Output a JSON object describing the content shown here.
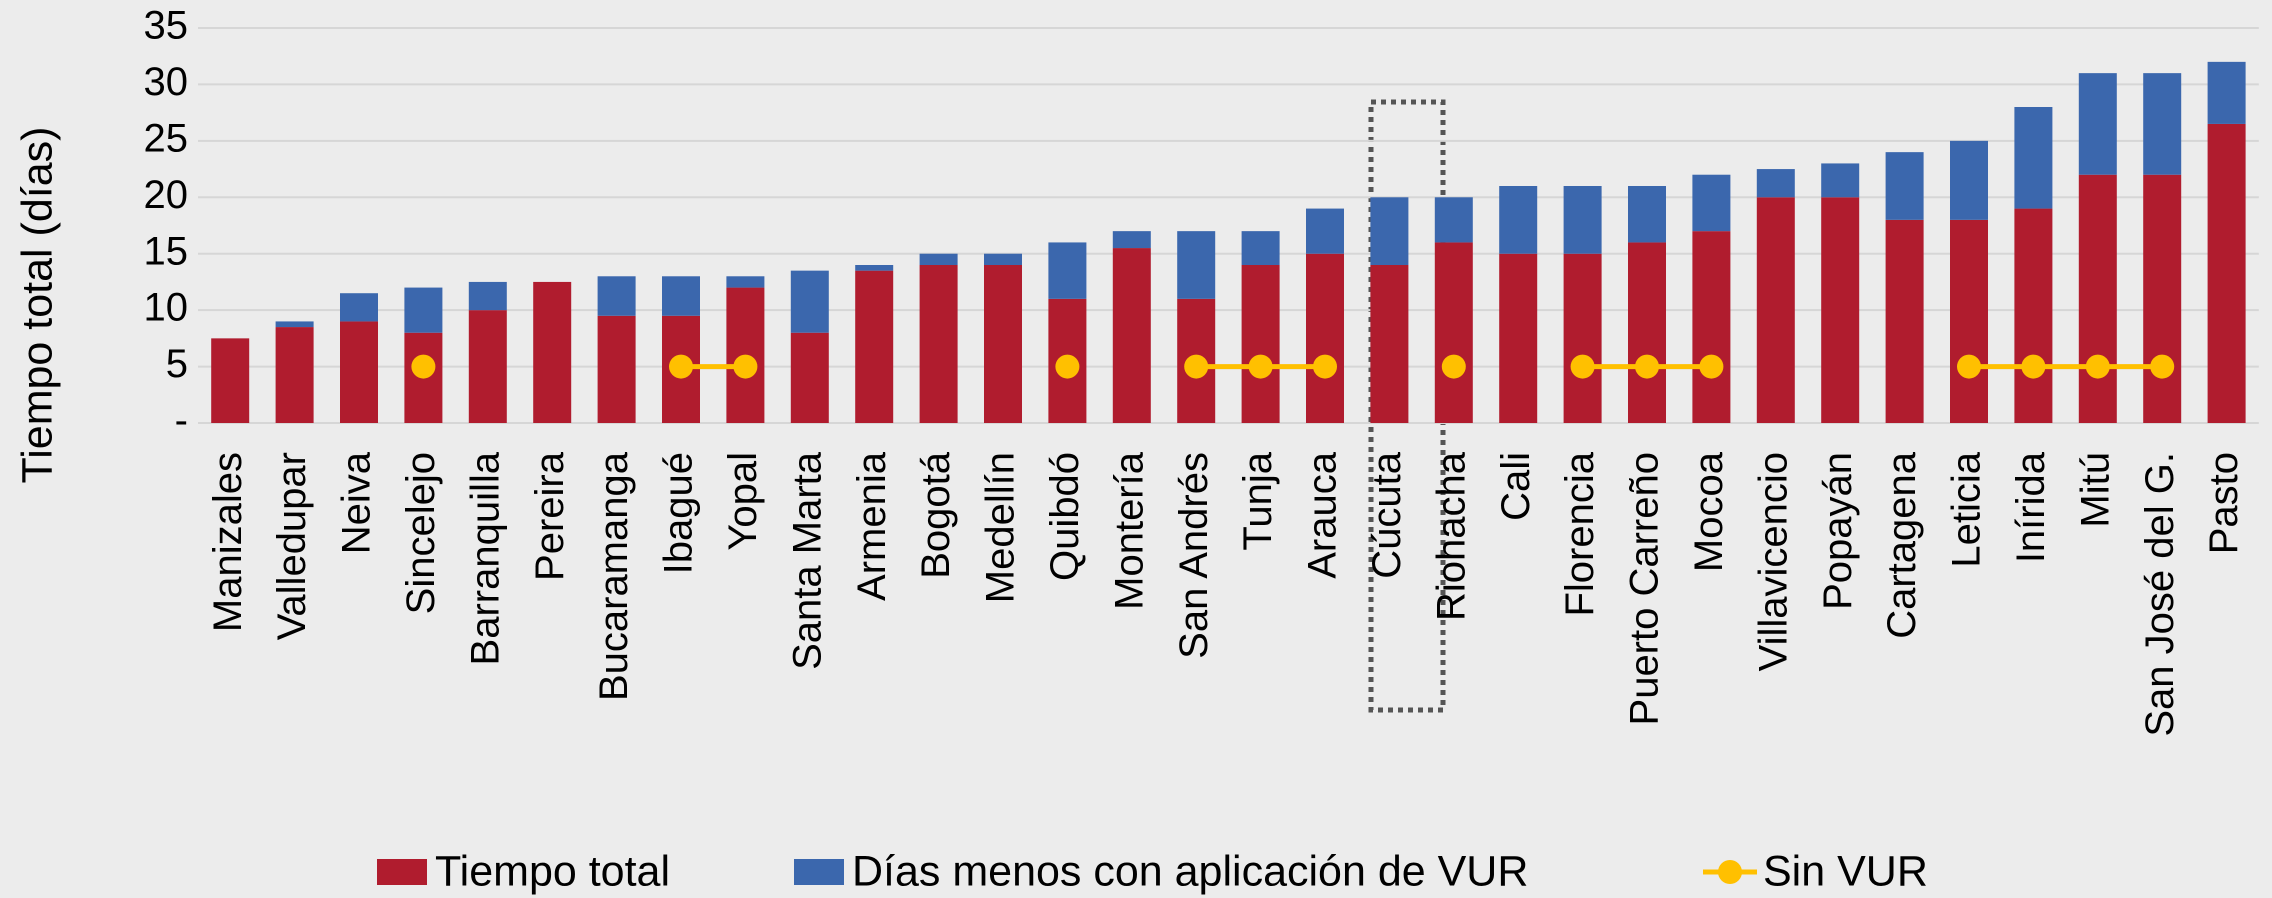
{
  "chart_data": {
    "type": "bar",
    "stacked": true,
    "y_label": "Tiempo total (días)",
    "categories": [
      "Manizales",
      "Valledupar",
      "Neiva",
      "Sincelejo",
      "Barranquilla",
      "Pereira",
      "Bucaramanga",
      "Ibagué",
      "Yopal",
      "Santa Marta",
      "Armenia",
      "Bogotá",
      "Medellín",
      "Quibdó",
      "Montería",
      "San Andrés",
      "Tunja",
      "Arauca",
      "Cúcuta",
      "Riohacha",
      "Cali",
      "Florencia",
      "Puerto Carreño",
      "Mocoa",
      "Villavicencio",
      "Popayán",
      "Cartagena",
      "Leticia",
      "Inírida",
      "Mitú",
      "San José del G.",
      "Pasto"
    ],
    "series": [
      {
        "name": "Tiempo total",
        "color": "#b01c2e",
        "values": [
          7.5,
          8.5,
          9,
          8,
          10,
          12.5,
          9.5,
          9.5,
          12,
          8,
          13.5,
          14,
          14,
          11,
          15.5,
          11,
          14,
          15,
          14,
          16,
          15,
          15,
          16,
          17,
          20,
          20,
          18,
          18,
          19,
          22,
          22,
          26.5
        ]
      },
      {
        "name": "Días menos con aplicación de VUR",
        "color": "#3b67ad",
        "values": [
          0,
          0.5,
          2.5,
          4,
          2.5,
          0,
          3.5,
          3.5,
          1,
          5.5,
          0.5,
          1,
          1,
          5,
          1.5,
          6,
          3,
          4,
          6,
          4,
          6,
          6,
          5,
          5,
          2.5,
          3,
          6,
          7,
          9,
          9,
          9,
          5.5
        ]
      },
      {
        "name": "Sin VUR",
        "type": "line",
        "color": "#ffc000",
        "values": [
          null,
          null,
          null,
          5,
          null,
          null,
          null,
          5,
          5,
          null,
          null,
          null,
          null,
          5,
          null,
          5,
          5,
          5,
          null,
          5,
          null,
          5,
          5,
          5,
          null,
          null,
          null,
          5,
          5,
          5,
          5,
          null
        ]
      }
    ],
    "ylim": [
      0,
      35
    ],
    "yticks": [
      {
        "value": 0,
        "label": "-"
      },
      5,
      10,
      15,
      20,
      25,
      30,
      35
    ],
    "grid": true
  }
}
